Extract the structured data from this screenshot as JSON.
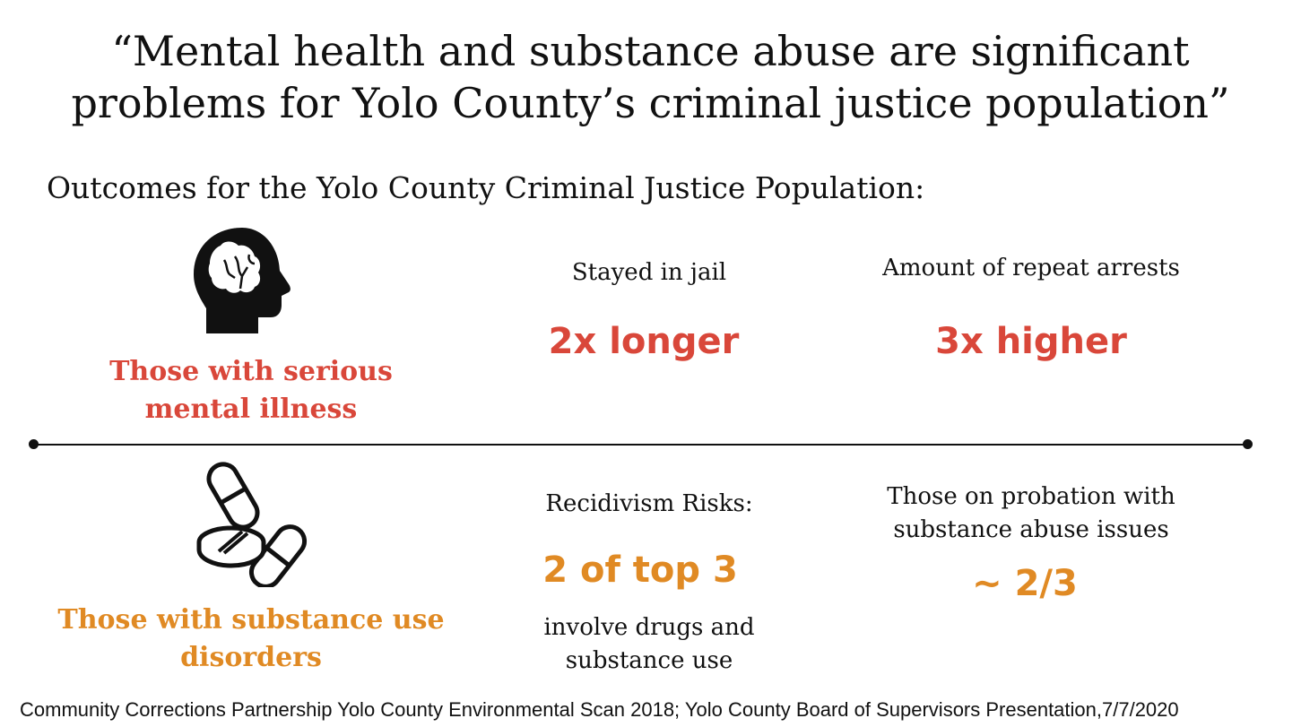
{
  "title_line1": "“Mental health and substance abuse are significant",
  "title_line2": "problems for Yolo County’s criminal justice population”",
  "subtitle": "Outcomes for the Yolo County Criminal Justice Population:",
  "colors": {
    "mental": "#d9473a",
    "substance": "#e08a24",
    "text": "#111111"
  },
  "mental_health": {
    "icon": "brain-head-icon",
    "label_line1": "Those with serious",
    "label_line2": "mental illness",
    "stat1": {
      "label": "Stayed in jail",
      "value": "2x longer"
    },
    "stat2": {
      "label": "Amount of repeat arrests",
      "value": "3x higher"
    }
  },
  "substance_use": {
    "icon": "pills-icon",
    "label_line1": "Those with substance use",
    "label_line2": "disorders",
    "stat1": {
      "label": "Recidivism Risks:",
      "value": "2 of top 3",
      "note_line1": "involve drugs and",
      "note_line2": "substance use"
    },
    "stat2": {
      "label_line1": "Those on probation with",
      "label_line2": "substance abuse issues",
      "value": "~ 2/3"
    }
  },
  "source": "Community Corrections Partnership Yolo County Environmental Scan 2018; Yolo County Board of Supervisors Presentation,7/7/2020"
}
